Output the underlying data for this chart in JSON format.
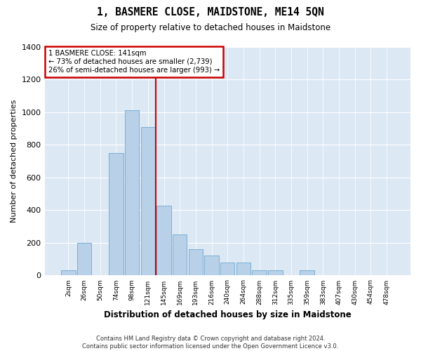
{
  "title": "1, BASMERE CLOSE, MAIDSTONE, ME14 5QN",
  "subtitle": "Size of property relative to detached houses in Maidstone",
  "xlabel": "Distribution of detached houses by size in Maidstone",
  "ylabel": "Number of detached properties",
  "categories": [
    "2sqm",
    "26sqm",
    "50sqm",
    "74sqm",
    "98sqm",
    "121sqm",
    "145sqm",
    "169sqm",
    "193sqm",
    "216sqm",
    "240sqm",
    "264sqm",
    "288sqm",
    "312sqm",
    "335sqm",
    "359sqm",
    "383sqm",
    "407sqm",
    "430sqm",
    "454sqm",
    "478sqm"
  ],
  "values": [
    30,
    200,
    0,
    750,
    1010,
    910,
    425,
    250,
    160,
    120,
    80,
    80,
    30,
    30,
    0,
    30,
    0,
    0,
    0,
    0,
    0
  ],
  "bar_color": "#b8d0e8",
  "bar_edge_color": "#7aafd4",
  "annotation_line1": "1 BASMERE CLOSE: 141sqm",
  "annotation_line2": "← 73% of detached houses are smaller (2,739)",
  "annotation_line3": "26% of semi-detached houses are larger (993) →",
  "annotation_box_color": "#ffffff",
  "annotation_box_edge": "#cc0000",
  "vline_color": "#cc0000",
  "vline_pos": 6,
  "ylim": [
    0,
    1400
  ],
  "yticks": [
    0,
    200,
    400,
    600,
    800,
    1000,
    1200,
    1400
  ],
  "footer1": "Contains HM Land Registry data © Crown copyright and database right 2024.",
  "footer2": "Contains public sector information licensed under the Open Government Licence v3.0.",
  "bg_color": "#ffffff",
  "plot_bg_color": "#dde8f5"
}
